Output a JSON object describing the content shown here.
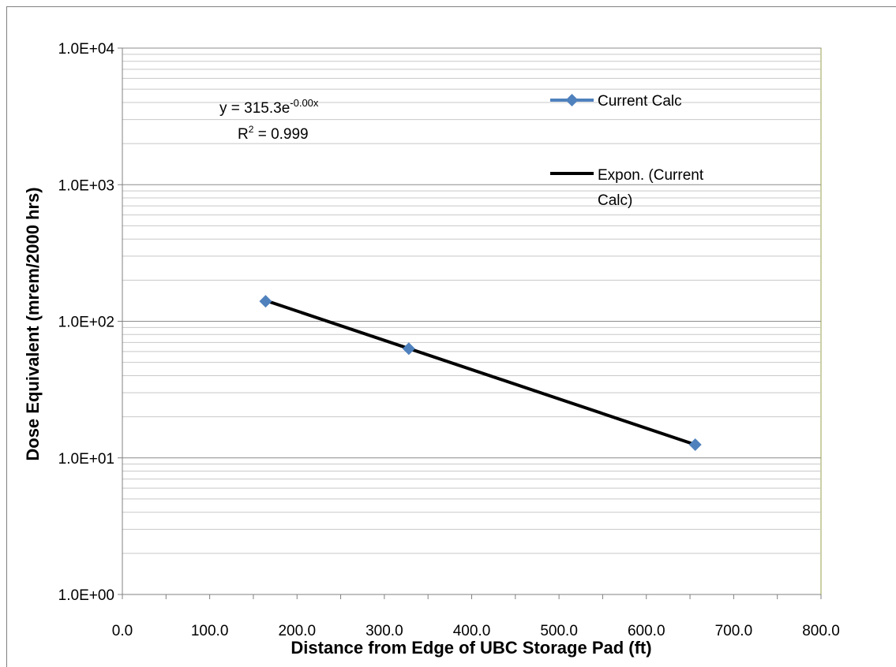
{
  "chart_data": {
    "type": "scatter",
    "xlabel": "Distance from Edge of UBC Storage Pad (ft)",
    "ylabel": "Dose Equivalent (mrem/2000 hrs)",
    "xlim": [
      0,
      800
    ],
    "ylim": [
      1,
      10000
    ],
    "y_scale": "log",
    "x_ticks": [
      0,
      100,
      200,
      300,
      400,
      500,
      600,
      700,
      800
    ],
    "x_tick_labels": [
      "0.0",
      "100.0",
      "200.0",
      "300.0",
      "400.0",
      "500.0",
      "600.0",
      "700.0",
      "800.0"
    ],
    "y_ticks": [
      1,
      10,
      100,
      1000,
      10000
    ],
    "y_tick_labels": [
      "1.0E+00",
      "1.0E+01",
      "1.0E+02",
      "1.0E+03",
      "1.0E+04"
    ],
    "grid": {
      "x_major": false,
      "y_major": true,
      "y_minor": true
    },
    "legend_position": "right",
    "series": [
      {
        "name": "Current Calc",
        "x": [
          164,
          328,
          656
        ],
        "y": [
          140,
          63,
          12.5
        ],
        "color": "#4f81bd",
        "marker": "diamond"
      }
    ],
    "trendline": {
      "name": "Expon. (Current Calc)",
      "legend_lines": [
        "Expon. (Current",
        "Calc)"
      ],
      "type": "exponential",
      "x": [
        164,
        656
      ],
      "y": [
        142,
        12.5
      ],
      "color": "#000000"
    },
    "annotation": {
      "equation_prefix": "y = 315.3e",
      "equation_exponent": "-0.00x",
      "r2_prefix": "R",
      "r2_sup": "2",
      "r2_value": " = 0.999"
    }
  }
}
